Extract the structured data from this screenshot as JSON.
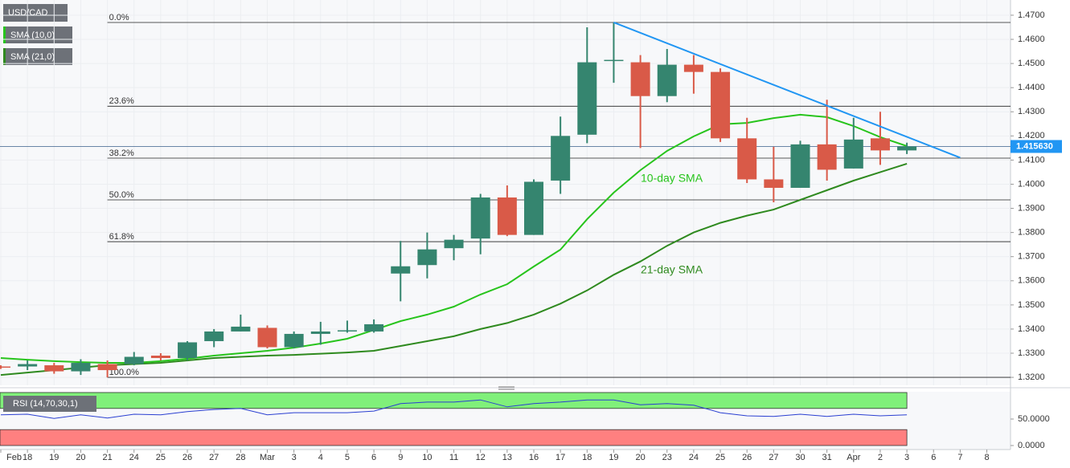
{
  "chart_data": [
    {
      "type": "candlestick",
      "title": "USD/CAD",
      "categories": [
        "Feb",
        "18",
        "19",
        "20",
        "21",
        "24",
        "25",
        "26",
        "27",
        "28",
        "Mar",
        "3",
        "4",
        "5",
        "6",
        "9",
        "10",
        "11",
        "12",
        "13",
        "16",
        "17",
        "18",
        "19",
        "20",
        "23",
        "24",
        "25",
        "26",
        "27",
        "30",
        "31",
        "Apr",
        "2",
        "3",
        "6",
        "7",
        "8"
      ],
      "open": [
        1.3245,
        1.3245,
        1.325,
        1.3225,
        1.3255,
        1.3255,
        1.329,
        1.328,
        1.335,
        1.339,
        1.3405,
        1.3325,
        1.338,
        1.339,
        1.339,
        1.363,
        1.3665,
        1.3735,
        1.3775,
        1.3945,
        1.379,
        1.4015,
        1.4205,
        1.451,
        1.4505,
        1.4365,
        1.4495,
        1.4465,
        1.419,
        1.402,
        1.3985,
        1.4165,
        1.4065,
        1.419,
        1.414,
        null,
        null,
        null
      ],
      "high": [
        1.325,
        1.327,
        1.326,
        1.3275,
        1.327,
        1.3305,
        1.33,
        1.335,
        1.34,
        1.346,
        1.3415,
        1.339,
        1.343,
        1.3435,
        1.344,
        1.3765,
        1.38,
        1.379,
        1.396,
        1.3995,
        1.402,
        1.428,
        1.465,
        1.467,
        1.4535,
        1.456,
        1.4535,
        1.448,
        1.4275,
        1.4155,
        1.418,
        1.435,
        1.4275,
        1.43,
        1.4172,
        null,
        null,
        null
      ],
      "low": [
        1.3235,
        1.323,
        1.3215,
        1.321,
        1.32,
        1.325,
        1.327,
        1.327,
        1.3325,
        1.339,
        1.332,
        1.332,
        1.3335,
        1.3385,
        1.3385,
        1.3515,
        1.361,
        1.3685,
        1.371,
        1.3785,
        1.379,
        1.396,
        1.417,
        1.442,
        1.415,
        1.434,
        1.4375,
        1.4175,
        1.4005,
        1.3925,
        1.3985,
        1.4015,
        1.4065,
        1.408,
        1.4125,
        null,
        null,
        null
      ],
      "close": [
        1.324,
        1.3255,
        1.3225,
        1.326,
        1.323,
        1.3285,
        1.328,
        1.3345,
        1.339,
        1.341,
        1.3325,
        1.338,
        1.339,
        1.3395,
        1.342,
        1.366,
        1.373,
        1.377,
        1.3945,
        1.379,
        1.401,
        1.42,
        1.4505,
        1.4515,
        1.4365,
        1.4495,
        1.4465,
        1.419,
        1.402,
        1.3985,
        1.4165,
        1.406,
        1.4185,
        1.414,
        1.41563,
        null,
        null,
        null
      ],
      "up_color": "#35856f",
      "down_color": "#d95a48",
      "lines": [
        {
          "name": "SMA (21,0)",
          "color": "#2f8a1f",
          "values": [
            1.321,
            1.322,
            1.323,
            1.324,
            1.325,
            1.3255,
            1.326,
            1.327,
            1.328,
            1.3285,
            1.329,
            1.3293,
            1.3298,
            1.3303,
            1.331,
            1.333,
            1.335,
            1.337,
            1.34,
            1.3425,
            1.346,
            1.3505,
            1.356,
            1.3625,
            1.368,
            1.3745,
            1.38,
            1.384,
            1.387,
            1.3895,
            1.3935,
            1.3975,
            1.4015,
            1.405,
            1.4085,
            null,
            null,
            null
          ]
        },
        {
          "name": "SMA (10,0)",
          "color": "#27c41c",
          "values": [
            1.328,
            1.3273,
            1.3267,
            1.3263,
            1.326,
            1.326,
            1.3267,
            1.3277,
            1.329,
            1.33,
            1.331,
            1.3323,
            1.334,
            1.336,
            1.3396,
            1.3433,
            1.346,
            1.3493,
            1.3543,
            1.3586,
            1.3659,
            1.3729,
            1.3855,
            1.3965,
            1.4058,
            1.4138,
            1.4198,
            1.4248,
            1.4254,
            1.4274,
            1.4288,
            1.4278,
            1.4241,
            1.4195,
            1.4158,
            null,
            null,
            null
          ]
        }
      ],
      "annotations": [
        {
          "text": "10-day SMA",
          "color": "#27c41c"
        },
        {
          "text": "21-day SMA",
          "color": "#2f8a1f"
        }
      ],
      "fib_levels": [
        {
          "name": "0.0%",
          "value": 1.467
        },
        {
          "name": "23.6%",
          "value": 1.4323
        },
        {
          "name": "38.2%",
          "value": 1.4108
        },
        {
          "name": "50.0%",
          "value": 1.3935
        },
        {
          "name": "61.8%",
          "value": 1.3762
        },
        {
          "name": "100.0%",
          "value": 1.32
        }
      ],
      "trendline": {
        "color": "#2196f3",
        "from_index": 23,
        "to_index": 36,
        "from": 1.467,
        "to": 1.411
      },
      "last_price": {
        "value": 1.41563,
        "label": "1.415630",
        "color": "#2196f3"
      },
      "ylim": [
        1.3167,
        1.4763
      ],
      "yticks": [
        {
          "value": 1.32,
          "label": "1.3200"
        },
        {
          "value": 1.33,
          "label": "1.3300"
        },
        {
          "value": 1.34,
          "label": "1.3400"
        },
        {
          "value": 1.35,
          "label": "1.3500"
        },
        {
          "value": 1.36,
          "label": "1.3600"
        },
        {
          "value": 1.37,
          "label": "1.3700"
        },
        {
          "value": 1.38,
          "label": "1.3800"
        },
        {
          "value": 1.39,
          "label": "1.3900"
        },
        {
          "value": 1.4,
          "label": "1.4000"
        },
        {
          "value": 1.41,
          "label": "1.4100"
        },
        {
          "value": 1.42,
          "label": "1.4200"
        },
        {
          "value": 1.43,
          "label": "1.4300"
        },
        {
          "value": 1.44,
          "label": "1.4400"
        },
        {
          "value": 1.45,
          "label": "1.4500"
        },
        {
          "value": 1.46,
          "label": "1.4600"
        },
        {
          "value": 1.47,
          "label": "1.4700"
        }
      ],
      "grid": true
    },
    {
      "type": "line",
      "title": "RSI (14,70,30,1)",
      "color": "#2a3fd1",
      "values": [
        58,
        59,
        51,
        58,
        52,
        59,
        58,
        64,
        68,
        70,
        58,
        62,
        62,
        62,
        65,
        79,
        82,
        82,
        86,
        73,
        79,
        82,
        86,
        86,
        77,
        79,
        76,
        62,
        56,
        55,
        59,
        55,
        59,
        56,
        58,
        null,
        null,
        null
      ],
      "bands": [
        {
          "from": 70,
          "to": 100,
          "color": "#80f07a"
        },
        {
          "from": 0,
          "to": 30,
          "color": "#ff8080"
        }
      ],
      "ylim": [
        -7.6,
        101.5
      ],
      "yticks": [
        {
          "value": 0,
          "label": "0.0000"
        },
        {
          "value": 50,
          "label": "50.0000"
        }
      ]
    }
  ]
}
